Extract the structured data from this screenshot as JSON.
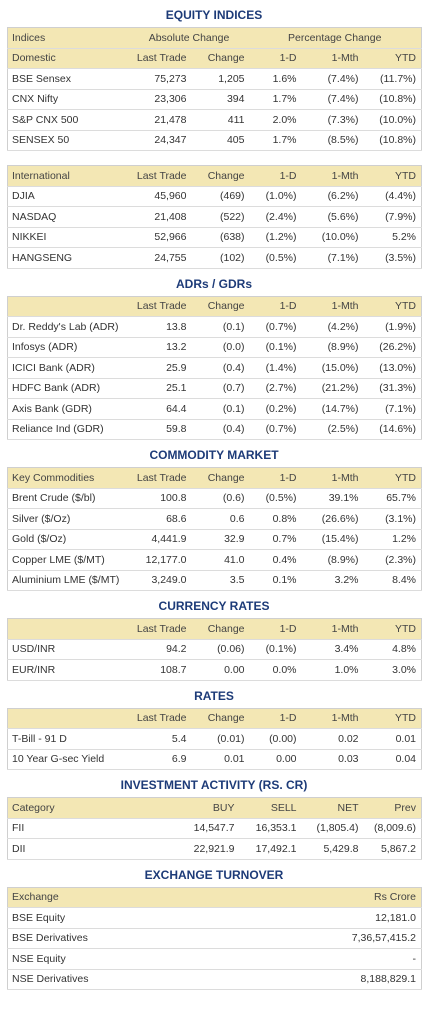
{
  "sections": [
    {
      "title": "EQUITY INDICES",
      "tables": [
        {
          "headers": [
            [
              "Indices",
              "Absolute Change",
              "Percentage Change"
            ],
            [
              "Domestic",
              "Last Trade",
              "Change",
              "1-D",
              "1-Mth",
              "YTD"
            ]
          ],
          "rows": [
            [
              "BSE Sensex",
              "75,273",
              "1,205",
              "1.6%",
              "(7.4%)",
              "(11.7%)"
            ],
            [
              "CNX Nifty",
              "23,306",
              "394",
              "1.7%",
              "(7.4%)",
              "(10.8%)"
            ],
            [
              "S&P CNX 500",
              "21,478",
              "411",
              "2.0%",
              "(7.3%)",
              "(10.0%)"
            ],
            [
              "SENSEX 50",
              "24,347",
              "405",
              "1.7%",
              "(8.5%)",
              "(10.8%)"
            ]
          ]
        },
        {
          "headers": [
            [
              "International",
              "Last Trade",
              "Change",
              "1-D",
              "1-Mth",
              "YTD"
            ]
          ],
          "rows": [
            [
              "DJIA",
              "45,960",
              "(469)",
              "(1.0%)",
              "(6.2%)",
              "(4.4%)"
            ],
            [
              "NASDAQ",
              "21,408",
              "(522)",
              "(2.4%)",
              "(5.6%)",
              "(7.9%)"
            ],
            [
              "NIKKEI",
              "52,966",
              "(638)",
              "(1.2%)",
              "(10.0%)",
              "5.2%"
            ],
            [
              "HANGSENG",
              "24,755",
              "(102)",
              "(0.5%)",
              "(7.1%)",
              "(3.5%)"
            ]
          ]
        }
      ]
    },
    {
      "title": "ADRs / GDRs",
      "tables": [
        {
          "headers": [
            [
              "Last Trade",
              "Change",
              "1-D",
              "1-Mth",
              "YTD"
            ]
          ],
          "rows": [
            [
              "Dr. Reddy's Lab (ADR)",
              "13.8",
              "(0.1)",
              "(0.7%)",
              "(4.2%)",
              "(1.9%)"
            ],
            [
              "Infosys (ADR)",
              "13.2",
              "(0.0)",
              "(0.1%)",
              "(8.9%)",
              "(26.2%)"
            ],
            [
              "ICICI Bank (ADR)",
              "25.9",
              "(0.4)",
              "(1.4%)",
              "(15.0%)",
              "(13.0%)"
            ],
            [
              "HDFC Bank (ADR)",
              "25.1",
              "(0.7)",
              "(2.7%)",
              "(21.2%)",
              "(31.3%)"
            ],
            [
              "Axis Bank (GDR)",
              "64.4",
              "(0.1)",
              "(0.2%)",
              "(14.7%)",
              "(7.1%)"
            ],
            [
              "Reliance Ind (GDR)",
              "59.8",
              "(0.4)",
              "(0.7%)",
              "(2.5%)",
              "(14.6%)"
            ]
          ]
        }
      ]
    },
    {
      "title": "COMMODITY MARKET",
      "tables": [
        {
          "headers": [
            [
              "Key Commodities",
              "Last Trade",
              "Change",
              "1-D",
              "1-Mth",
              "YTD"
            ]
          ],
          "rows": [
            [
              "Brent Crude ($/bl)",
              "100.8",
              "(0.6)",
              "(0.5%)",
              "39.1%",
              "65.7%"
            ],
            [
              "Silver ($/Oz)",
              "68.6",
              "0.6",
              "0.8%",
              "(26.6%)",
              "(3.1%)"
            ],
            [
              "Gold ($/Oz)",
              "4,441.9",
              "32.9",
              "0.7%",
              "(15.4%)",
              "1.2%"
            ],
            [
              "Copper LME ($/MT)",
              "12,177.0",
              "41.0",
              "0.4%",
              "(8.9%)",
              "(2.3%)"
            ],
            [
              "Aluminium LME ($/MT)",
              "3,249.0",
              "3.5",
              "0.1%",
              "3.2%",
              "8.4%"
            ]
          ]
        }
      ]
    },
    {
      "title": "CURRENCY RATES",
      "tables": [
        {
          "headers": [
            [
              "Last Trade",
              "Change",
              "1-D",
              "1-Mth",
              "YTD"
            ]
          ],
          "rows": [
            [
              "USD/INR",
              "94.2",
              "(0.06)",
              "(0.1%)",
              "3.4%",
              "4.8%"
            ],
            [
              "EUR/INR",
              "108.7",
              "0.00",
              "0.0%",
              "1.0%",
              "3.0%"
            ]
          ]
        }
      ]
    },
    {
      "title": "RATES",
      "tables": [
        {
          "headers": [
            [
              "Last Trade",
              "Change",
              "1-D",
              "1-Mth",
              "YTD"
            ]
          ],
          "rows": [
            [
              "T-Bill - 91 D",
              "5.4",
              "(0.01)",
              "(0.00)",
              "0.02",
              "0.01"
            ],
            [
              "10 Year G-sec Yield",
              "6.9",
              "0.01",
              "0.00",
              "0.03",
              "0.04"
            ]
          ]
        }
      ]
    },
    {
      "title": "INVESTMENT ACTIVITY (RS. CR)",
      "tables": [
        {
          "headers": [
            [
              "Category",
              "BUY",
              "SELL",
              "NET",
              "Prev"
            ]
          ],
          "rows": [
            [
              "FII",
              "14,547.7",
              "16,353.1",
              "(1,805.4)",
              "(8,009.6)"
            ],
            [
              "DII",
              "22,921.9",
              "17,492.1",
              "5,429.8",
              "5,867.2"
            ]
          ]
        }
      ]
    },
    {
      "title": "EXCHANGE TURNOVER",
      "tables": [
        {
          "headers": [
            [
              "Exchange",
              "Rs Crore"
            ]
          ],
          "rows": [
            [
              "BSE Equity",
              "12,181.0"
            ],
            [
              "BSE Derivatives",
              "7,36,57,415.2"
            ],
            [
              "NSE Equity",
              "-"
            ],
            [
              "NSE Derivatives",
              "8,188,829.1"
            ]
          ]
        }
      ]
    }
  ]
}
